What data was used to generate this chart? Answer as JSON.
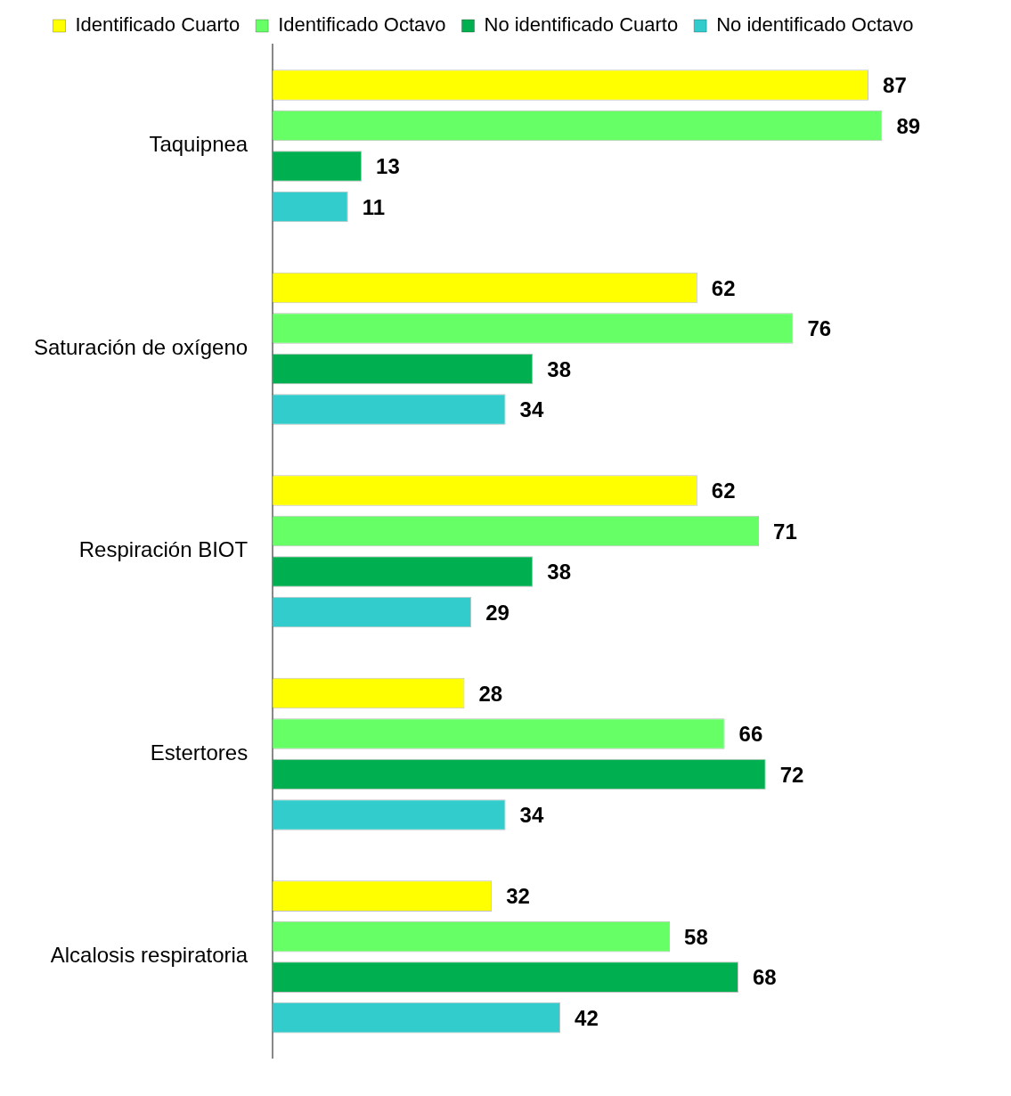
{
  "chart_data": {
    "type": "bar",
    "orientation": "horizontal",
    "categories": [
      "Taquipnea",
      "Saturación de oxígeno",
      "Respiración BIOT",
      "Estertores",
      "Alcalosis respiratoria"
    ],
    "series": [
      {
        "name": "Identificado Cuarto",
        "color": "#ffff00",
        "values": [
          87,
          62,
          62,
          28,
          32
        ]
      },
      {
        "name": "Identificado Octavo",
        "color": "#66ff66",
        "values": [
          89,
          76,
          71,
          66,
          58
        ]
      },
      {
        "name": "No identificado Cuarto",
        "color": "#00b050",
        "values": [
          13,
          38,
          38,
          72,
          68
        ]
      },
      {
        "name": "No identificado Octavo",
        "color": "#33cccc",
        "values": [
          11,
          34,
          29,
          34,
          42
        ]
      }
    ],
    "tick_labels": "y",
    "legend": "top",
    "data_labels": true
  }
}
